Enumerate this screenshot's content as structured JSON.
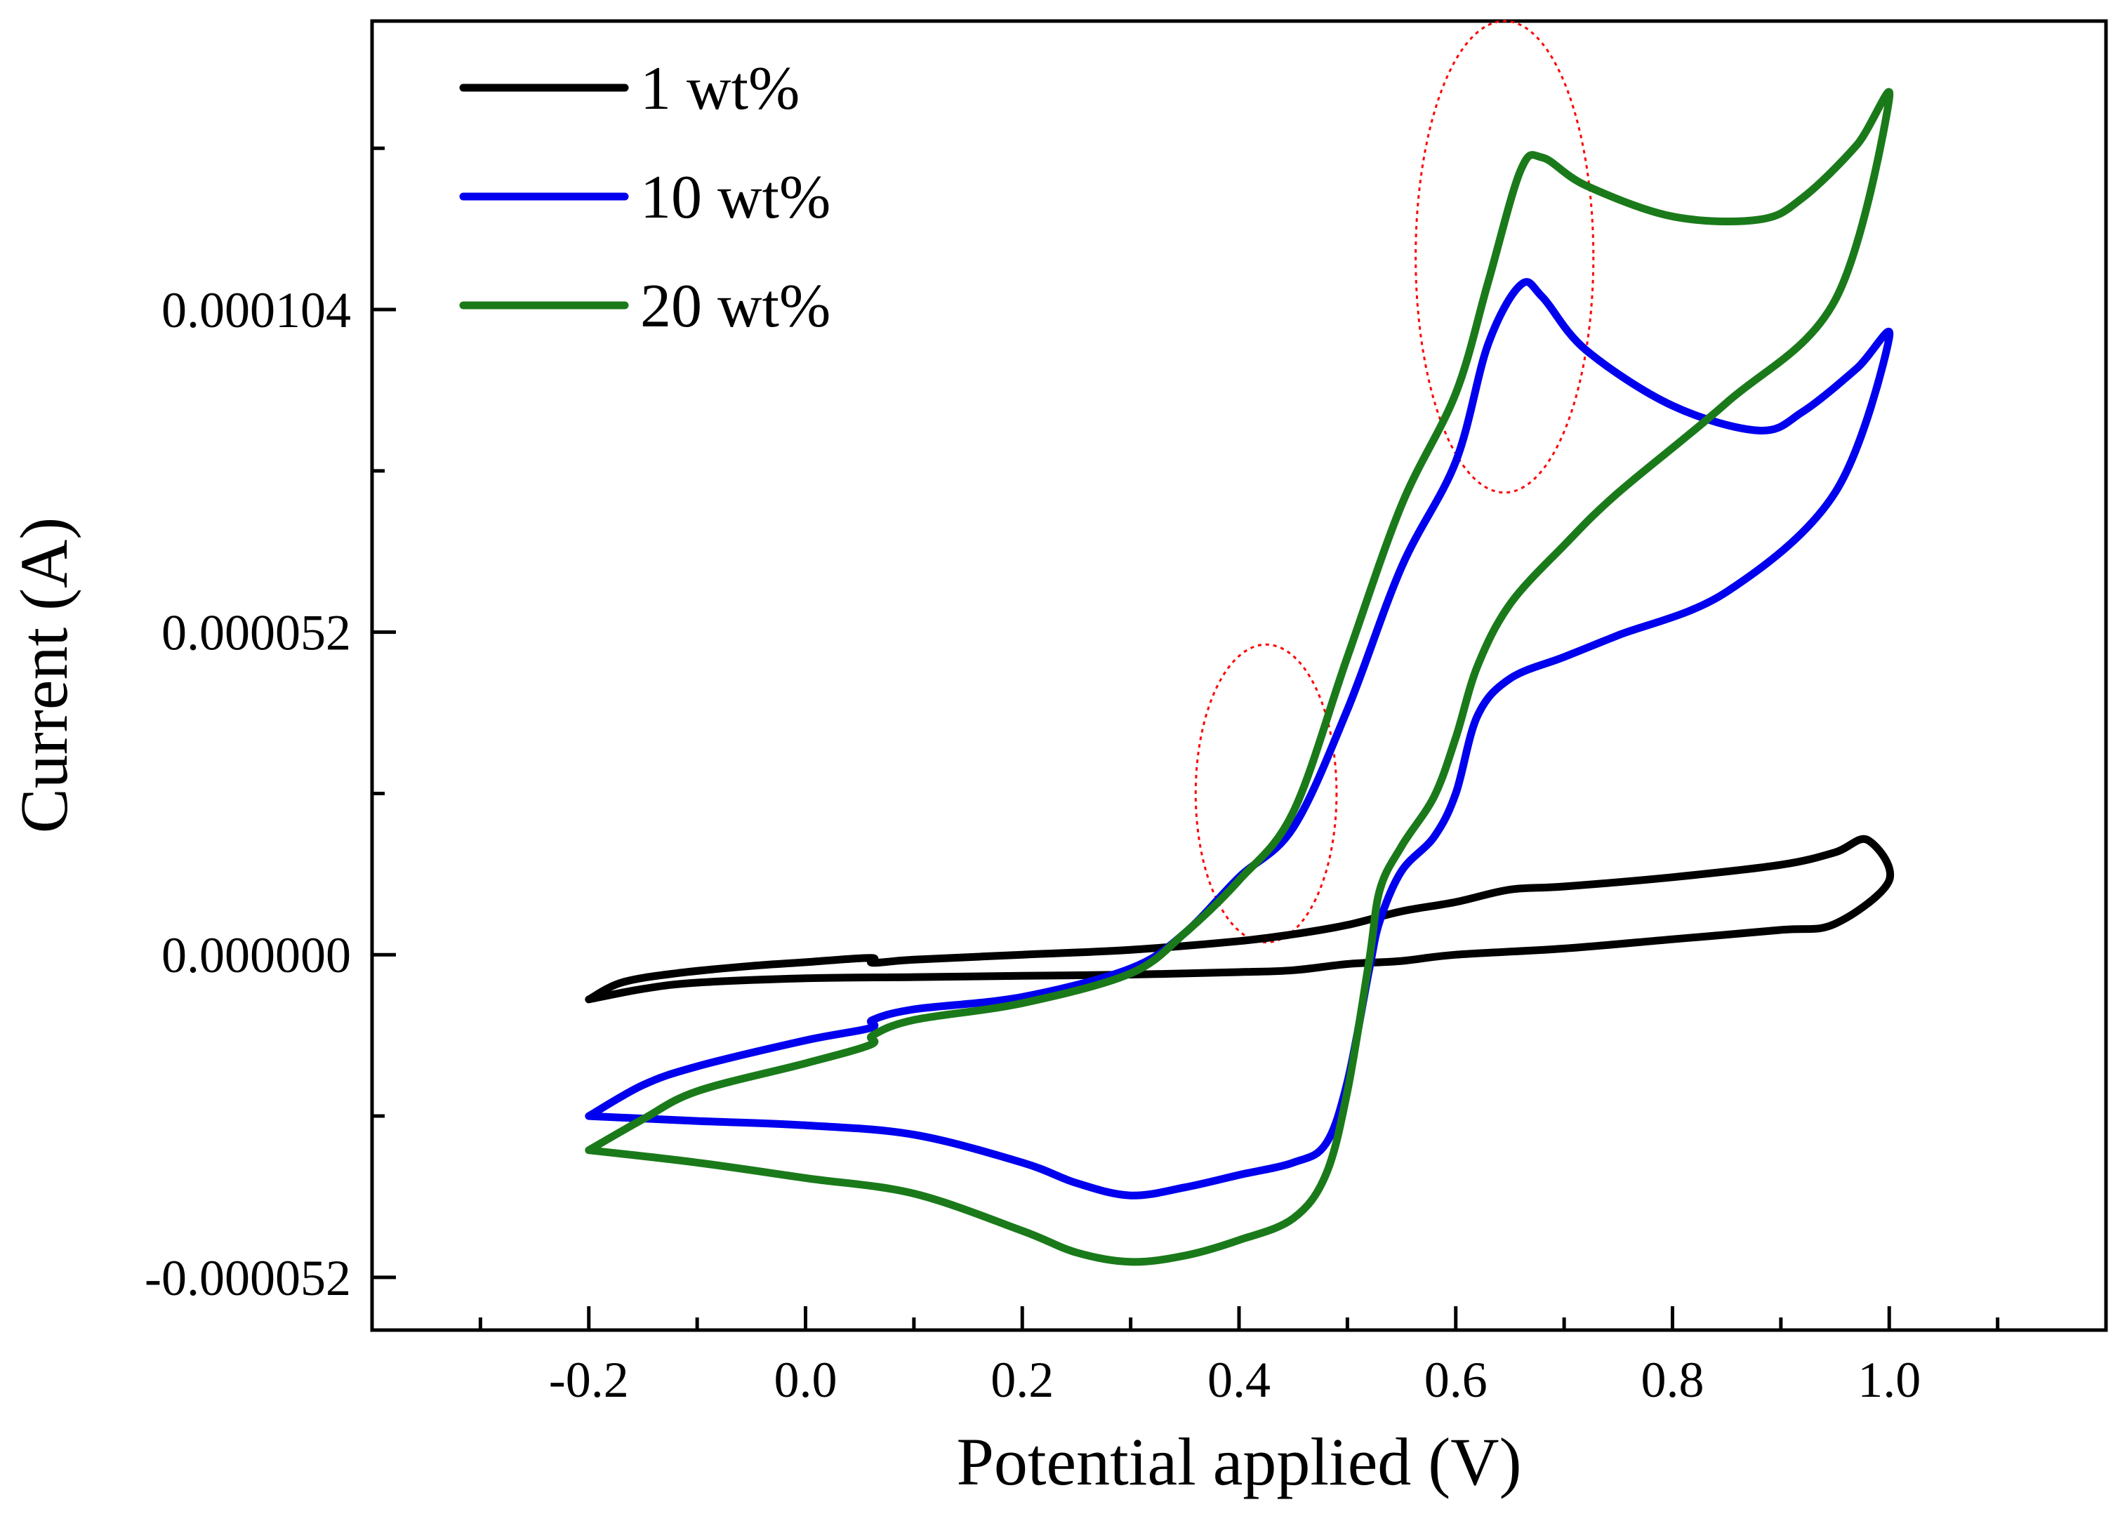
{
  "chart_data": {
    "type": "line",
    "title": "",
    "xlabel": "Potential applied (V)",
    "ylabel": "Current (A)",
    "xlim": [
      -0.4,
      1.2
    ],
    "ylim": [
      -6.05e-05,
      0.0001505
    ],
    "x_ticks": [
      {
        "value": -0.2,
        "label": "-0.2"
      },
      {
        "value": 0.0,
        "label": "0.0"
      },
      {
        "value": 0.2,
        "label": "0.2"
      },
      {
        "value": 0.4,
        "label": "0.4"
      },
      {
        "value": 0.6,
        "label": "0.6"
      },
      {
        "value": 0.8,
        "label": "0.8"
      },
      {
        "value": 1.0,
        "label": "1.0"
      }
    ],
    "x_minor_ticks": [
      -0.3,
      -0.1,
      0.1,
      0.3,
      0.5,
      0.7,
      0.9,
      1.1
    ],
    "y_ticks": [
      {
        "value": -5.2e-05,
        "label": "-0.000052"
      },
      {
        "value": 0.0,
        "label": "0.000000"
      },
      {
        "value": 5.2e-05,
        "label": "0.000052"
      },
      {
        "value": 0.000104,
        "label": "0.000104"
      }
    ],
    "y_minor_ticks": [
      -2.6e-05,
      2.6e-05,
      7.8e-05,
      0.00013
    ],
    "grid": false,
    "legend": {
      "position": "top-left"
    },
    "series": [
      {
        "name": "1 wt%",
        "color": "#000000",
        "points": [
          [
            -0.2,
            -7.2e-06
          ],
          [
            -0.17,
            -4.5e-06
          ],
          [
            -0.12,
            -3e-06
          ],
          [
            -0.05,
            -1.8e-06
          ],
          [
            0.0,
            -1.2e-06
          ],
          [
            0.06,
            -5e-07
          ],
          [
            0.062,
            -1.3e-06
          ],
          [
            0.1,
            -8e-07
          ],
          [
            0.2,
            0.0
          ],
          [
            0.3,
            8e-07
          ],
          [
            0.4,
            2.2e-06
          ],
          [
            0.45,
            3.3e-06
          ],
          [
            0.5,
            4.8e-06
          ],
          [
            0.55,
            7e-06
          ],
          [
            0.6,
            8.5e-06
          ],
          [
            0.65,
            1.05e-05
          ],
          [
            0.7,
            1.1e-05
          ],
          [
            0.8,
            1.25e-05
          ],
          [
            0.9,
            1.45e-05
          ],
          [
            0.95,
            1.65e-05
          ],
          [
            0.98,
            1.85e-05
          ],
          [
            1.0,
            1.2e-05
          ],
          [
            0.95,
            5e-06
          ],
          [
            0.9,
            4e-06
          ],
          [
            0.8,
            2.5e-06
          ],
          [
            0.7,
            1e-06
          ],
          [
            0.6,
            0.0
          ],
          [
            0.55,
            -1e-06
          ],
          [
            0.5,
            -1.5e-06
          ],
          [
            0.45,
            -2.5e-06
          ],
          [
            0.4,
            -2.8e-06
          ],
          [
            0.3,
            -3.2e-06
          ],
          [
            0.2,
            -3.4e-06
          ],
          [
            0.1,
            -3.6e-06
          ],
          [
            0.0,
            -3.8e-06
          ],
          [
            -0.1,
            -4.5e-06
          ],
          [
            -0.15,
            -5.5e-06
          ],
          [
            -0.2,
            -7.2e-06
          ]
        ]
      },
      {
        "name": "10 wt%",
        "color": "#0000ee",
        "points": [
          [
            -0.2,
            -2.6e-05
          ],
          [
            -0.15,
            -2.1e-05
          ],
          [
            -0.1,
            -1.8e-05
          ],
          [
            0.0,
            -1.38e-05
          ],
          [
            0.06,
            -1.18e-05
          ],
          [
            0.062,
            -1.05e-05
          ],
          [
            0.1,
            -8.8e-06
          ],
          [
            0.2,
            -6.8e-06
          ],
          [
            0.3,
            -2.2e-06
          ],
          [
            0.35,
            3.5e-06
          ],
          [
            0.4,
            1.25e-05
          ],
          [
            0.45,
            2.05e-05
          ],
          [
            0.5,
            3.95e-05
          ],
          [
            0.55,
            6.25e-05
          ],
          [
            0.6,
            7.95e-05
          ],
          [
            0.63,
            9.85e-05
          ],
          [
            0.66,
            0.000108
          ],
          [
            0.68,
            0.000106
          ],
          [
            0.72,
            9.75e-05
          ],
          [
            0.8,
            8.85e-05
          ],
          [
            0.88,
            8.45e-05
          ],
          [
            0.92,
            8.75e-05
          ],
          [
            0.97,
            9.45e-05
          ],
          [
            1.0,
            9.95e-05
          ],
          [
            0.95,
            7.45e-05
          ],
          [
            0.85,
            5.85e-05
          ],
          [
            0.75,
            5.15e-05
          ],
          [
            0.7,
            4.8e-05
          ],
          [
            0.65,
            4.45e-05
          ],
          [
            0.62,
            3.85e-05
          ],
          [
            0.6,
            2.6e-05
          ],
          [
            0.58,
            1.9e-05
          ],
          [
            0.55,
            1.35e-05
          ],
          [
            0.53,
            5.5e-06
          ],
          [
            0.52,
            -2.5e-06
          ],
          [
            0.5,
            -2.05e-05
          ],
          [
            0.48,
            -3.05e-05
          ],
          [
            0.45,
            -3.35e-05
          ],
          [
            0.4,
            -3.55e-05
          ],
          [
            0.35,
            -3.75e-05
          ],
          [
            0.3,
            -3.88e-05
          ],
          [
            0.25,
            -3.68e-05
          ],
          [
            0.2,
            -3.35e-05
          ],
          [
            0.1,
            -2.9e-05
          ],
          [
            0.0,
            -2.75e-05
          ],
          [
            -0.1,
            -2.68e-05
          ],
          [
            -0.2,
            -2.6e-05
          ]
        ]
      },
      {
        "name": "20 wt%",
        "color": "#1a7a1a",
        "points": [
          [
            -0.2,
            -3.15e-05
          ],
          [
            -0.15,
            -2.65e-05
          ],
          [
            -0.1,
            -2.2e-05
          ],
          [
            0.0,
            -1.75e-05
          ],
          [
            0.06,
            -1.45e-05
          ],
          [
            0.062,
            -1.3e-05
          ],
          [
            0.1,
            -1.05e-05
          ],
          [
            0.2,
            -7.8e-06
          ],
          [
            0.3,
            -3e-06
          ],
          [
            0.35,
            3.5e-06
          ],
          [
            0.4,
            1.2e-05
          ],
          [
            0.45,
            2.3e-05
          ],
          [
            0.5,
            4.8e-05
          ],
          [
            0.55,
            7.25e-05
          ],
          [
            0.6,
            9.05e-05
          ],
          [
            0.63,
            0.0001085
          ],
          [
            0.66,
            0.0001265
          ],
          [
            0.68,
            0.0001285
          ],
          [
            0.72,
            0.000124
          ],
          [
            0.8,
            0.000119
          ],
          [
            0.88,
            0.0001185
          ],
          [
            0.92,
            0.000122
          ],
          [
            0.97,
            0.0001305
          ],
          [
            1.0,
            0.000138
          ],
          [
            0.95,
            0.0001055
          ],
          [
            0.85,
            8.9e-05
          ],
          [
            0.75,
            7.45e-05
          ],
          [
            0.7,
            6.6e-05
          ],
          [
            0.65,
            5.65e-05
          ],
          [
            0.62,
            4.65e-05
          ],
          [
            0.6,
            3.5e-05
          ],
          [
            0.58,
            2.55e-05
          ],
          [
            0.55,
            1.75e-05
          ],
          [
            0.53,
            1.05e-05
          ],
          [
            0.52,
            -1e-06
          ],
          [
            0.5,
            -2.2e-05
          ],
          [
            0.48,
            -3.55e-05
          ],
          [
            0.45,
            -4.25e-05
          ],
          [
            0.4,
            -4.6e-05
          ],
          [
            0.35,
            -4.85e-05
          ],
          [
            0.3,
            -4.95e-05
          ],
          [
            0.25,
            -4.8e-05
          ],
          [
            0.2,
            -4.45e-05
          ],
          [
            0.1,
            -3.85e-05
          ],
          [
            0.0,
            -3.6e-05
          ],
          [
            -0.1,
            -3.35e-05
          ],
          [
            -0.2,
            -3.15e-05
          ]
        ]
      }
    ],
    "annotations": [
      {
        "type": "dotted-ellipse",
        "color": "#ff0000",
        "center": [
          0.425,
          2.6e-05
        ],
        "rx": 0.065,
        "ry": 2.4e-05
      },
      {
        "type": "dotted-ellipse",
        "color": "#ff0000",
        "center": [
          0.645,
          0.0001125
        ],
        "rx": 0.082,
        "ry": 3.8e-05
      }
    ]
  }
}
